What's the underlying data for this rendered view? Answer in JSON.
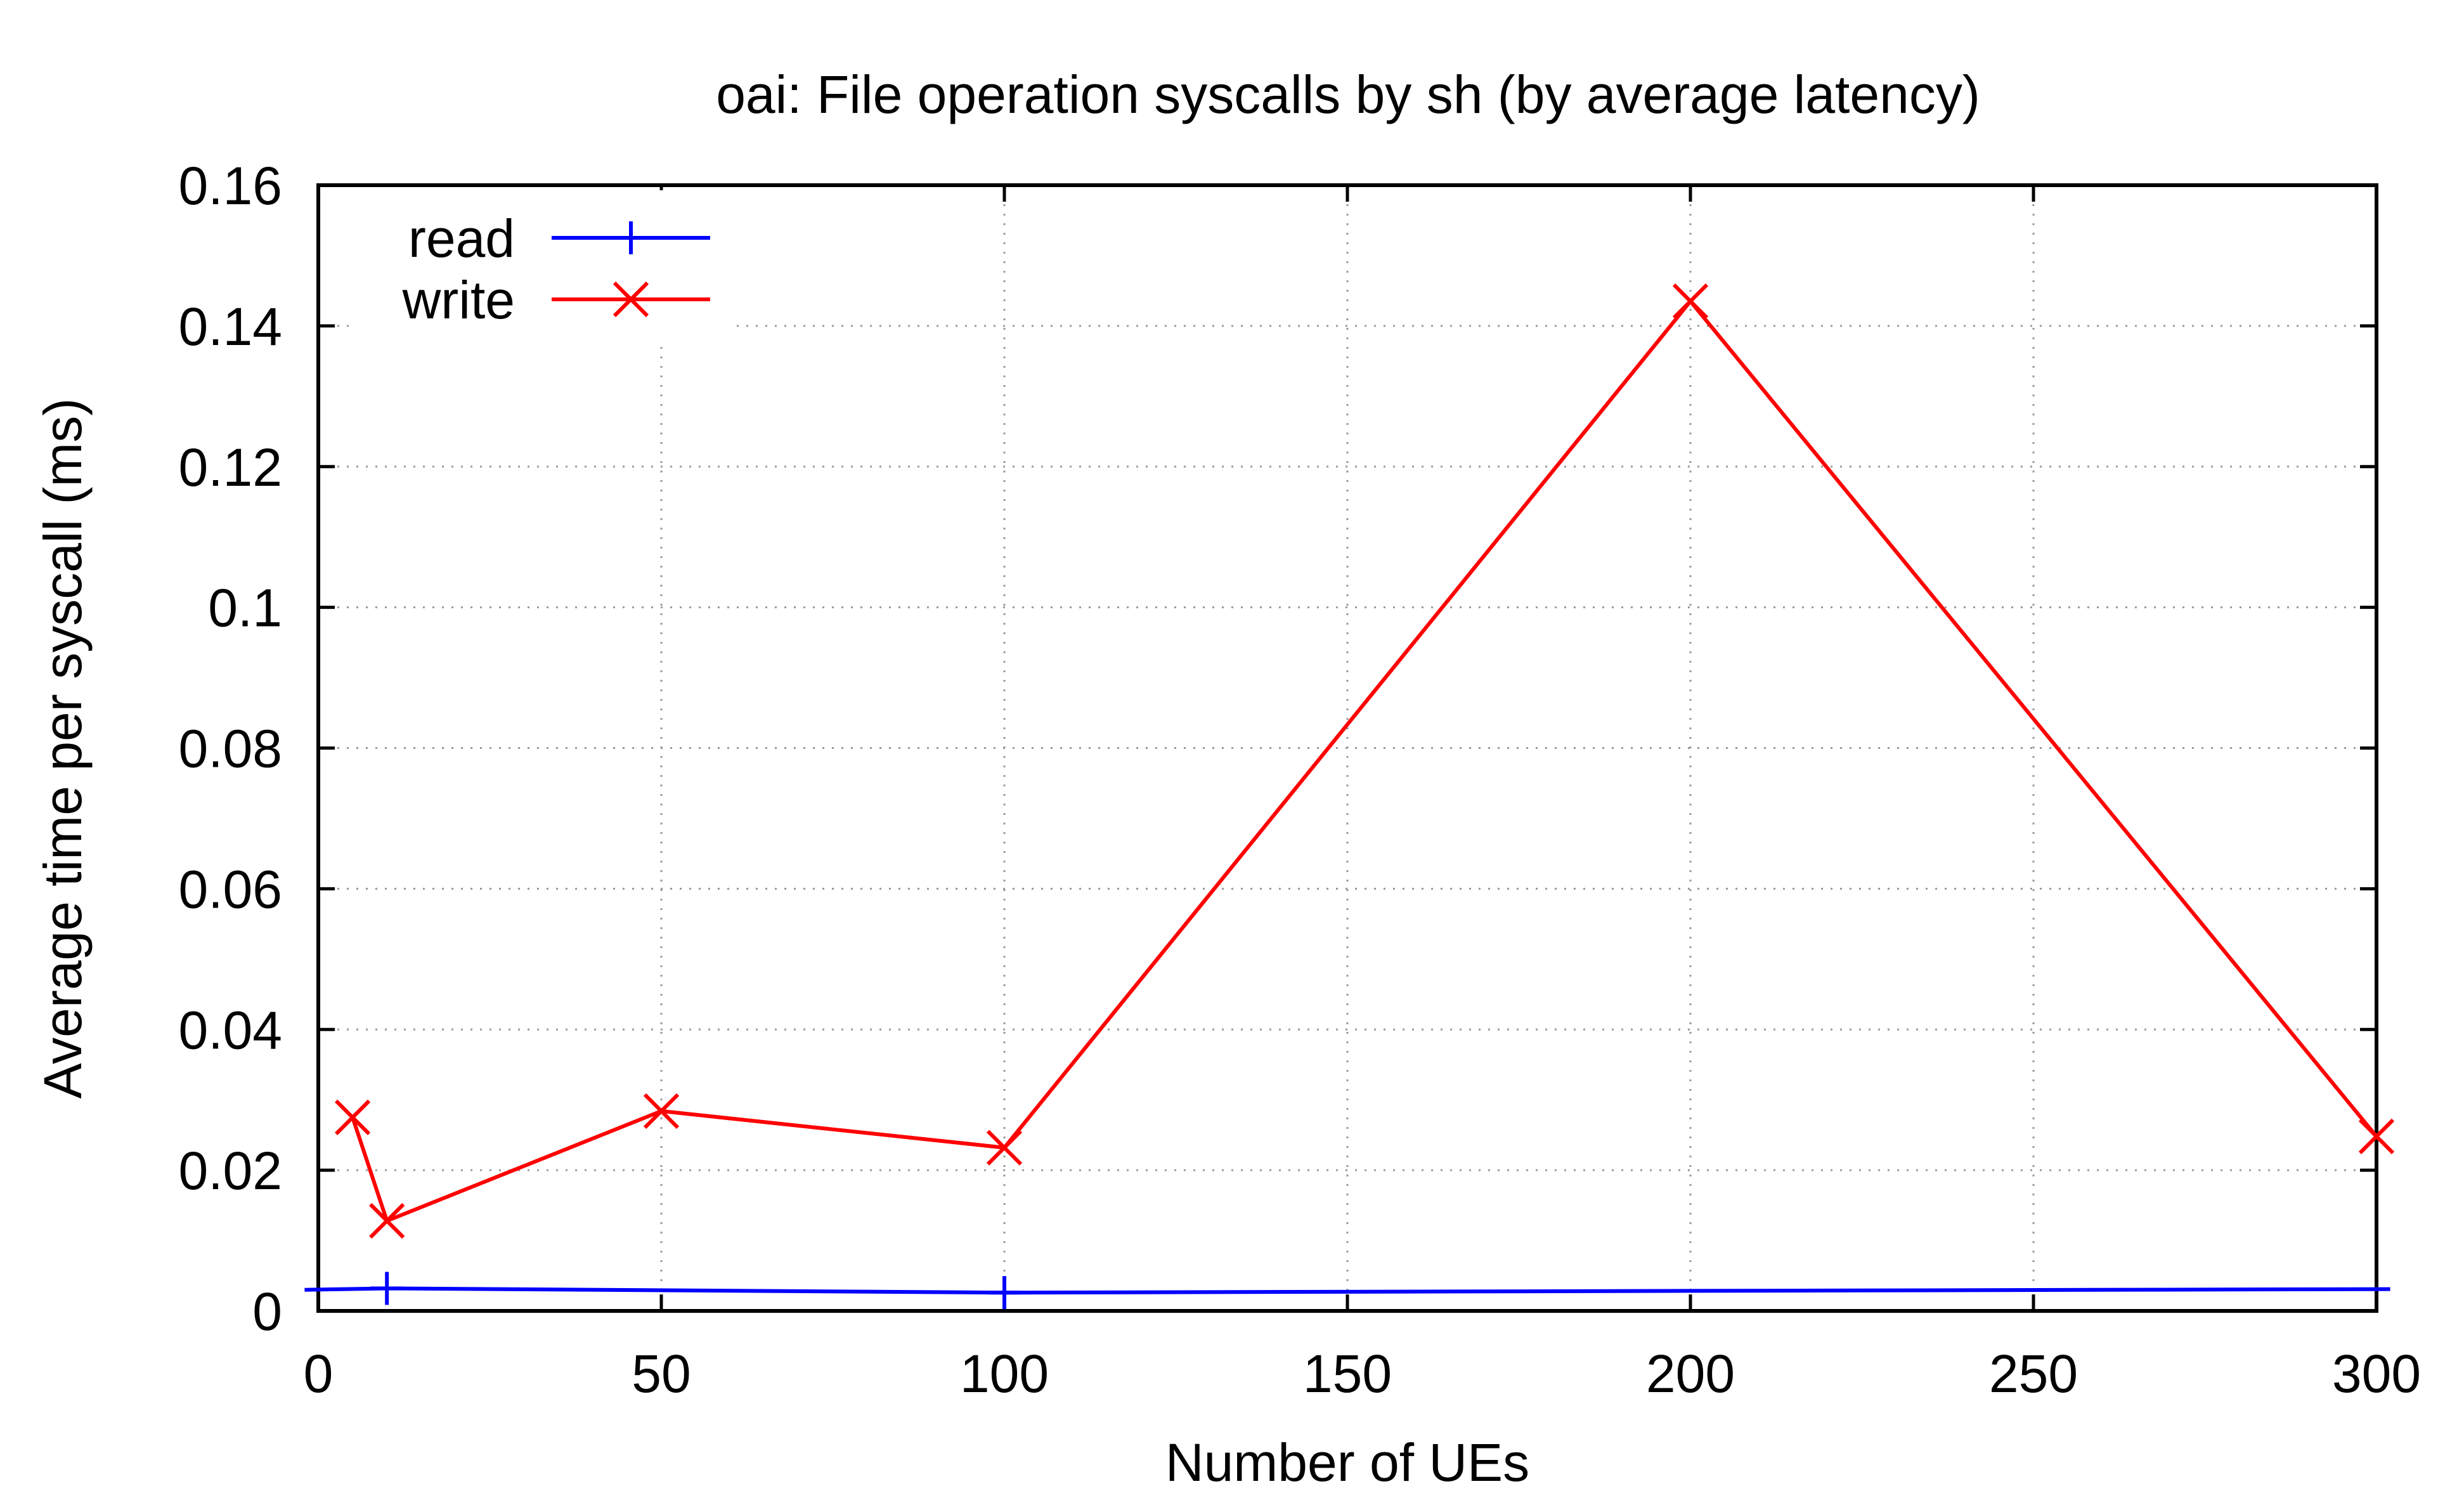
{
  "chart_data": {
    "type": "line",
    "title": "oai: File operation syscalls by sh (by average latency)",
    "xlabel": "Number of UEs",
    "ylabel": "Average time per syscall (ms)",
    "xlim": [
      0,
      300
    ],
    "ylim": [
      0,
      0.16
    ],
    "x_ticks": [
      "0",
      "50",
      "100",
      "150",
      "200",
      "250",
      "300"
    ],
    "y_ticks": [
      "0",
      "0.02",
      "0.04",
      "0.06",
      "0.08",
      "0.1",
      "0.12",
      "0.14",
      "0.16"
    ],
    "grid": true,
    "legend_position": "top-left",
    "series": [
      {
        "name": "read",
        "color": "#0000ff",
        "marker": "plus",
        "x": [
          -2,
          10,
          100,
          302
        ],
        "y": [
          0.003,
          0.0032,
          0.0026,
          0.0031
        ]
      },
      {
        "name": "write",
        "color": "#ff0000",
        "marker": "cross",
        "x": [
          5,
          10,
          50,
          100,
          200,
          300
        ],
        "y": [
          0.0275,
          0.0128,
          0.0284,
          0.0232,
          0.1435,
          0.0248
        ]
      }
    ]
  }
}
